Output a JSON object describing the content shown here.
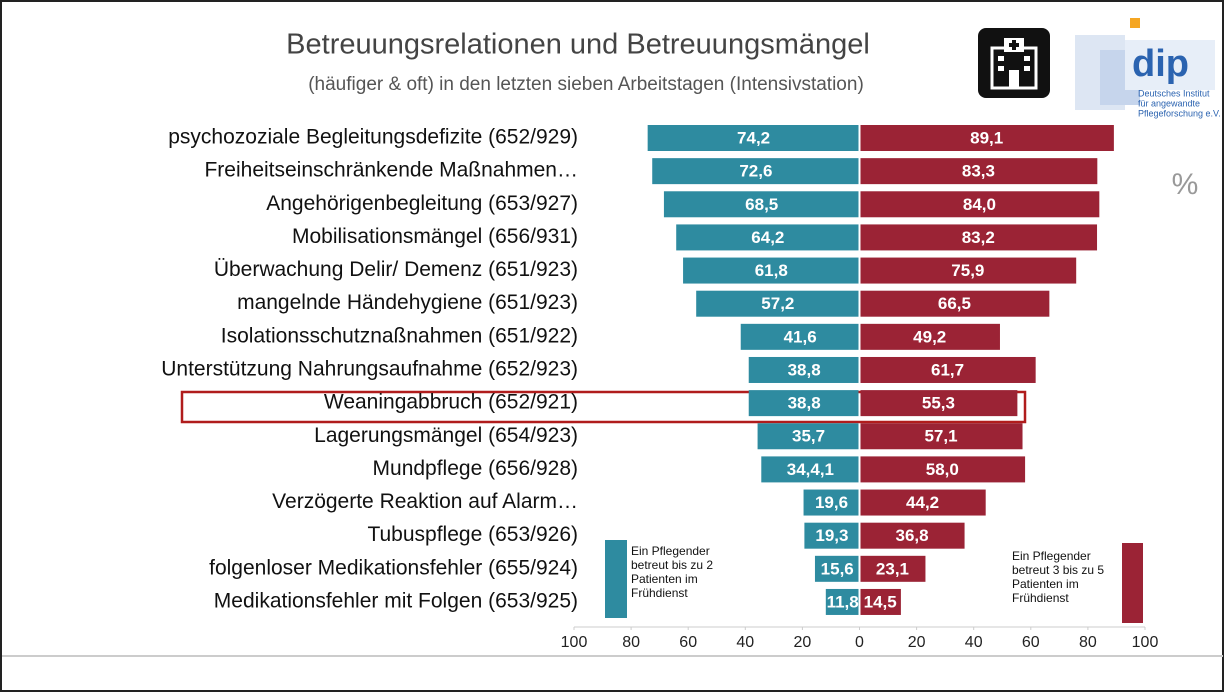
{
  "chart_data": {
    "type": "butterfly",
    "title": "Betreuungsrelationen und Betreuungsmängel",
    "subtitle": "(häufiger & oft) in den letzten sieben Arbeitstagen (Intensivstation)",
    "unit_label": "%",
    "categories": [
      "psychozoziale Begleitungsdefizite (652/929)",
      "Freiheitseinschränkende Maßnahmen…",
      "Angehörigenbegleitung (653/927)",
      "Mobilisationsmängel (656/931)",
      "Überwachung Delir/ Demenz (651/923)",
      "mangelnde Händehygiene (651/923)",
      "Isolationsschutznaßnahmen (651/922)",
      "Unterstützung Nahrungsaufnahme (652/923)",
      "Weaningabbruch (652/921)",
      "Lagerungsmängel (654/923)",
      "Mundpflege (656/928)",
      "Verzögerte Reaktion auf Alarm…",
      "Tubuspflege (653/926)",
      "folgenloser Medikationsfehler (655/924)",
      "Medikationsfehler mit Folgen (653/925)"
    ],
    "series": [
      {
        "name": "Ein Pflegender betreut bis zu 2 Patienten im Frühdienst",
        "color": "#2e8ba0",
        "direction": "left",
        "values": [
          74.2,
          72.6,
          68.5,
          64.2,
          61.8,
          57.2,
          41.6,
          38.8,
          38.8,
          35.7,
          34.4,
          19.6,
          19.3,
          15.6,
          11.8
        ],
        "value_labels": [
          "74,2",
          "72,6",
          "68,5",
          "64,2",
          "61,8",
          "57,2",
          "41,6",
          "38,8",
          "38,8",
          "35,7",
          "34,4,1",
          "19,6",
          "19,3",
          "15,6",
          "11,8"
        ]
      },
      {
        "name": "Ein Pflegender betreut 3 bis zu 5 Patienten im Frühdienst",
        "color": "#9b2335",
        "direction": "right",
        "values": [
          89.1,
          83.3,
          84.0,
          83.2,
          75.9,
          66.5,
          49.2,
          61.7,
          55.3,
          57.1,
          58.0,
          44.2,
          36.8,
          23.1,
          14.5
        ],
        "value_labels": [
          "89,1",
          "83,3",
          "84,0",
          "83,2",
          "75,9",
          "66,5",
          "49,2",
          "61,7",
          "55,3",
          "57,1",
          "58,0",
          "44,2",
          "36,8",
          "23,1",
          "14,5"
        ]
      }
    ],
    "xlim": [
      -100,
      100
    ],
    "xticks": [
      {
        "value": -100,
        "label": "100"
      },
      {
        "value": -80,
        "label": "80"
      },
      {
        "value": -60,
        "label": "60"
      },
      {
        "value": -40,
        "label": "40"
      },
      {
        "value": -20,
        "label": "20"
      },
      0,
      20,
      40,
      60,
      80,
      100
    ],
    "logo": {
      "name": "dip",
      "lines": [
        "Deutsches Institut",
        "für angewandte",
        "Pflegeforschung e.V."
      ]
    }
  }
}
